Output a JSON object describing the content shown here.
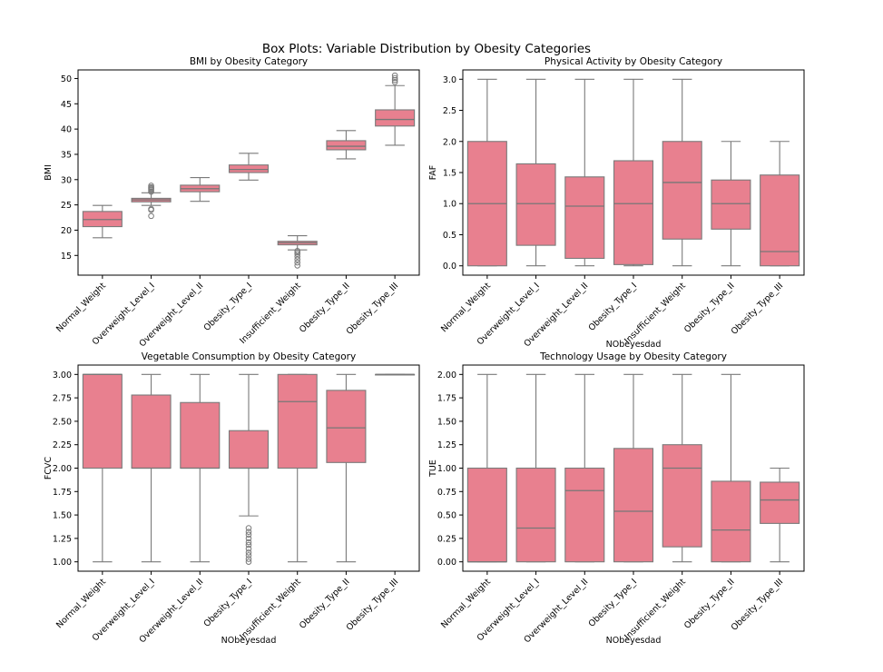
{
  "figure": {
    "title": "Box Plots: Variable Distribution by Obesity Categories"
  },
  "style": {
    "box_fill": "#e8808f",
    "median_line": "#777777",
    "whisker": "#7a7a7a",
    "axes": "#000000"
  },
  "chart_data": [
    {
      "type": "box",
      "title": "BMI by Obesity Category",
      "xlabel": "",
      "ylabel": "BMI",
      "ylim": [
        11.1,
        51.7
      ],
      "yticks": [
        15,
        20,
        25,
        30,
        35,
        40,
        45,
        50
      ],
      "ytick_labels": [
        "15",
        "20",
        "25",
        "30",
        "35",
        "40",
        "45",
        "50"
      ],
      "categories": [
        "Normal_Weight",
        "Overweight_Level_I",
        "Overweight_Level_II",
        "Obesity_Type_I",
        "Insufficient_Weight",
        "Obesity_Type_II",
        "Obesity_Type_III"
      ],
      "boxes": [
        {
          "whislo": 18.5,
          "q1": 20.7,
          "med": 22.1,
          "q3": 23.7,
          "whishi": 24.9,
          "fliers": []
        },
        {
          "whislo": 24.9,
          "q1": 25.6,
          "med": 26.0,
          "q3": 26.3,
          "whishi": 27.4,
          "fliers": [
            22.8,
            24.0,
            24.2,
            27.6,
            27.9,
            28.1,
            28.3,
            28.5,
            28.8
          ]
        },
        {
          "whislo": 25.7,
          "q1": 27.6,
          "med": 28.2,
          "q3": 28.9,
          "whishi": 30.4,
          "fliers": []
        },
        {
          "whislo": 29.9,
          "q1": 31.4,
          "med": 32.0,
          "q3": 32.9,
          "whishi": 35.2,
          "fliers": []
        },
        {
          "whislo": 16.1,
          "q1": 17.1,
          "med": 17.5,
          "q3": 17.8,
          "whishi": 18.9,
          "fliers": [
            13.0,
            13.6,
            14.2,
            14.8,
            15.3,
            15.6,
            15.9
          ]
        },
        {
          "whislo": 34.1,
          "q1": 35.9,
          "med": 36.6,
          "q3": 37.7,
          "whishi": 39.7,
          "fliers": []
        },
        {
          "whislo": 36.8,
          "q1": 40.6,
          "med": 41.9,
          "q3": 43.8,
          "whishi": 48.6,
          "fliers": [
            49.3,
            49.7,
            50.1,
            50.6
          ]
        }
      ]
    },
    {
      "type": "box",
      "title": "Physical Activity by Obesity Category",
      "xlabel": "NObeyesdad",
      "ylabel": "FAF",
      "ylim": [
        -0.15,
        3.15
      ],
      "yticks": [
        0,
        0.5,
        1,
        1.5,
        2,
        2.5,
        3
      ],
      "ytick_labels": [
        "0.0",
        "0.5",
        "1.0",
        "1.5",
        "2.0",
        "2.5",
        "3.0"
      ],
      "categories": [
        "Normal_Weight",
        "Overweight_Level_I",
        "Overweight_Level_II",
        "Obesity_Type_I",
        "Insufficient_Weight",
        "Obesity_Type_II",
        "Obesity_Type_III"
      ],
      "boxes": [
        {
          "whislo": 0.0,
          "q1": 0.0,
          "med": 1.0,
          "q3": 2.0,
          "whishi": 3.0,
          "fliers": []
        },
        {
          "whislo": 0.0,
          "q1": 0.33,
          "med": 1.0,
          "q3": 1.64,
          "whishi": 3.0,
          "fliers": []
        },
        {
          "whislo": 0.0,
          "q1": 0.12,
          "med": 0.96,
          "q3": 1.43,
          "whishi": 3.0,
          "fliers": []
        },
        {
          "whislo": 0.0,
          "q1": 0.02,
          "med": 1.0,
          "q3": 1.69,
          "whishi": 3.0,
          "fliers": []
        },
        {
          "whislo": 0.0,
          "q1": 0.43,
          "med": 1.34,
          "q3": 2.0,
          "whishi": 3.0,
          "fliers": []
        },
        {
          "whislo": 0.0,
          "q1": 0.59,
          "med": 1.0,
          "q3": 1.38,
          "whishi": 2.0,
          "fliers": []
        },
        {
          "whislo": 0.0,
          "q1": 0.0,
          "med": 0.23,
          "q3": 1.46,
          "whishi": 2.0,
          "fliers": []
        }
      ]
    },
    {
      "type": "box",
      "title": "Vegetable Consumption by Obesity Category",
      "xlabel": "NObeyesdad",
      "ylabel": "FCVC",
      "ylim": [
        0.9,
        3.1
      ],
      "yticks": [
        1,
        1.25,
        1.5,
        1.75,
        2,
        2.25,
        2.5,
        2.75,
        3
      ],
      "ytick_labels": [
        "1.00",
        "1.25",
        "1.50",
        "1.75",
        "2.00",
        "2.25",
        "2.50",
        "2.75",
        "3.00"
      ],
      "categories": [
        "Normal_Weight",
        "Overweight_Level_I",
        "Overweight_Level_II",
        "Obesity_Type_I",
        "Insufficient_Weight",
        "Obesity_Type_II",
        "Obesity_Type_III"
      ],
      "boxes": [
        {
          "whislo": 1.0,
          "q1": 2.0,
          "med": 3.0,
          "q3": 3.0,
          "whishi": 3.0,
          "fliers": []
        },
        {
          "whislo": 1.0,
          "q1": 2.0,
          "med": 2.0,
          "q3": 2.78,
          "whishi": 3.0,
          "fliers": []
        },
        {
          "whislo": 1.0,
          "q1": 2.0,
          "med": 2.0,
          "q3": 2.7,
          "whishi": 3.0,
          "fliers": []
        },
        {
          "whislo": 1.49,
          "q1": 2.0,
          "med": 2.0,
          "q3": 2.4,
          "whishi": 3.0,
          "fliers": [
            1.0,
            1.03,
            1.07,
            1.1,
            1.14,
            1.18,
            1.21,
            1.25,
            1.29,
            1.32,
            1.36
          ]
        },
        {
          "whislo": 1.0,
          "q1": 2.0,
          "med": 2.71,
          "q3": 3.0,
          "whishi": 3.0,
          "fliers": []
        },
        {
          "whislo": 1.0,
          "q1": 2.06,
          "med": 2.43,
          "q3": 2.83,
          "whishi": 3.0,
          "fliers": []
        },
        {
          "whislo": 3.0,
          "q1": 3.0,
          "med": 3.0,
          "q3": 3.0,
          "whishi": 3.0,
          "fliers": []
        }
      ]
    },
    {
      "type": "box",
      "title": "Technology Usage by Obesity Category",
      "xlabel": "NObeyesdad",
      "ylabel": "TUE",
      "ylim": [
        -0.1,
        2.1
      ],
      "yticks": [
        0,
        0.25,
        0.5,
        0.75,
        1,
        1.25,
        1.5,
        1.75,
        2
      ],
      "ytick_labels": [
        "0.00",
        "0.25",
        "0.50",
        "0.75",
        "1.00",
        "1.25",
        "1.50",
        "1.75",
        "2.00"
      ],
      "categories": [
        "Normal_Weight",
        "Overweight_Level_I",
        "Overweight_Level_II",
        "Obesity_Type_I",
        "Insufficient_Weight",
        "Obesity_Type_II",
        "Obesity_Type_III"
      ],
      "boxes": [
        {
          "whislo": 0.0,
          "q1": 0.0,
          "med": 0.0,
          "q3": 1.0,
          "whishi": 2.0,
          "fliers": []
        },
        {
          "whislo": 0.0,
          "q1": 0.0,
          "med": 0.36,
          "q3": 1.0,
          "whishi": 2.0,
          "fliers": []
        },
        {
          "whislo": 0.0,
          "q1": 0.0,
          "med": 0.76,
          "q3": 1.0,
          "whishi": 2.0,
          "fliers": []
        },
        {
          "whislo": 0.0,
          "q1": 0.0,
          "med": 0.54,
          "q3": 1.21,
          "whishi": 2.0,
          "fliers": []
        },
        {
          "whislo": 0.0,
          "q1": 0.16,
          "med": 1.0,
          "q3": 1.25,
          "whishi": 2.0,
          "fliers": []
        },
        {
          "whislo": 0.0,
          "q1": 0.0,
          "med": 0.34,
          "q3": 0.86,
          "whishi": 2.0,
          "fliers": []
        },
        {
          "whislo": 0.0,
          "q1": 0.41,
          "med": 0.66,
          "q3": 0.85,
          "whishi": 1.0,
          "fliers": []
        }
      ]
    }
  ]
}
